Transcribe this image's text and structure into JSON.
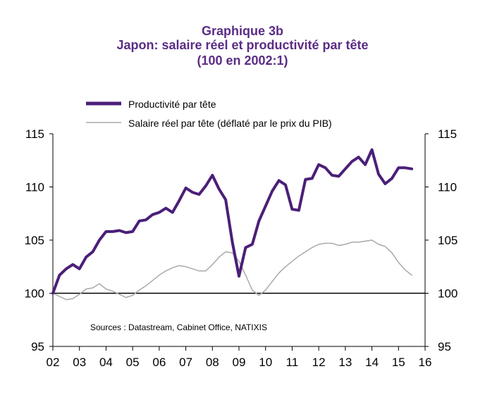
{
  "chart_data": {
    "type": "line",
    "title": "Graphique 3b",
    "subtitle": "Japon: salaire réel  et  productivité par tête",
    "subtitle2": "(100 en 2002:1)",
    "note": "Sources : Datastream, Cabinet Office, NATIXIS",
    "ylim": [
      95,
      115
    ],
    "yticks": [
      95,
      100,
      105,
      110,
      115
    ],
    "xlim": [
      2002,
      2016
    ],
    "xticks": [
      "02",
      "03",
      "04",
      "05",
      "06",
      "07",
      "08",
      "09",
      "10",
      "11",
      "12",
      "13",
      "14",
      "15",
      "16"
    ],
    "reference_line": 100,
    "legend_position": "top-left",
    "grid": false,
    "series": [
      {
        "name": "Productivité par tête",
        "color": "#4b1f78",
        "points": [
          [
            2002.0,
            100.0
          ],
          [
            2002.25,
            101.7
          ],
          [
            2002.5,
            102.3
          ],
          [
            2002.75,
            102.7
          ],
          [
            2003.0,
            102.3
          ],
          [
            2003.25,
            103.4
          ],
          [
            2003.5,
            103.9
          ],
          [
            2003.75,
            105.0
          ],
          [
            2004.0,
            105.8
          ],
          [
            2004.25,
            105.8
          ],
          [
            2004.5,
            105.9
          ],
          [
            2004.75,
            105.7
          ],
          [
            2005.0,
            105.8
          ],
          [
            2005.25,
            106.8
          ],
          [
            2005.5,
            106.9
          ],
          [
            2005.75,
            107.4
          ],
          [
            2006.0,
            107.6
          ],
          [
            2006.25,
            108.0
          ],
          [
            2006.5,
            107.6
          ],
          [
            2006.75,
            108.7
          ],
          [
            2007.0,
            109.9
          ],
          [
            2007.25,
            109.5
          ],
          [
            2007.5,
            109.3
          ],
          [
            2007.75,
            110.1
          ],
          [
            2008.0,
            111.1
          ],
          [
            2008.25,
            109.8
          ],
          [
            2008.5,
            108.8
          ],
          [
            2008.75,
            104.8
          ],
          [
            2009.0,
            101.6
          ],
          [
            2009.25,
            104.3
          ],
          [
            2009.5,
            104.6
          ],
          [
            2009.75,
            106.8
          ],
          [
            2010.0,
            108.2
          ],
          [
            2010.25,
            109.6
          ],
          [
            2010.5,
            110.6
          ],
          [
            2010.75,
            110.2
          ],
          [
            2011.0,
            107.9
          ],
          [
            2011.25,
            107.8
          ],
          [
            2011.5,
            110.7
          ],
          [
            2011.75,
            110.8
          ],
          [
            2012.0,
            112.1
          ],
          [
            2012.25,
            111.8
          ],
          [
            2012.5,
            111.1
          ],
          [
            2012.75,
            111.0
          ],
          [
            2013.0,
            111.7
          ],
          [
            2013.25,
            112.4
          ],
          [
            2013.5,
            112.8
          ],
          [
            2013.75,
            112.1
          ],
          [
            2014.0,
            113.5
          ],
          [
            2014.25,
            111.2
          ],
          [
            2014.5,
            110.3
          ],
          [
            2014.75,
            110.8
          ],
          [
            2015.0,
            111.8
          ],
          [
            2015.25,
            111.8
          ],
          [
            2015.5,
            111.7
          ]
        ]
      },
      {
        "name": "Salaire réel par tête (déflaté par le prix du PIB)",
        "color": "#a9a9a9",
        "points": [
          [
            2002.0,
            100.0
          ],
          [
            2002.25,
            99.7
          ],
          [
            2002.5,
            99.4
          ],
          [
            2002.75,
            99.5
          ],
          [
            2003.0,
            99.9
          ],
          [
            2003.25,
            100.4
          ],
          [
            2003.5,
            100.5
          ],
          [
            2003.75,
            100.9
          ],
          [
            2004.0,
            100.4
          ],
          [
            2004.25,
            100.2
          ],
          [
            2004.5,
            99.9
          ],
          [
            2004.75,
            99.6
          ],
          [
            2005.0,
            99.8
          ],
          [
            2005.25,
            100.3
          ],
          [
            2005.5,
            100.7
          ],
          [
            2005.75,
            101.2
          ],
          [
            2006.0,
            101.7
          ],
          [
            2006.25,
            102.1
          ],
          [
            2006.5,
            102.4
          ],
          [
            2006.75,
            102.6
          ],
          [
            2007.0,
            102.5
          ],
          [
            2007.25,
            102.3
          ],
          [
            2007.5,
            102.1
          ],
          [
            2007.75,
            102.1
          ],
          [
            2008.0,
            102.7
          ],
          [
            2008.25,
            103.4
          ],
          [
            2008.5,
            103.9
          ],
          [
            2008.75,
            103.8
          ],
          [
            2009.0,
            103.0
          ],
          [
            2009.25,
            101.7
          ],
          [
            2009.5,
            100.3
          ],
          [
            2009.75,
            99.8
          ],
          [
            2010.0,
            100.3
          ],
          [
            2010.25,
            101.1
          ],
          [
            2010.5,
            101.9
          ],
          [
            2010.75,
            102.5
          ],
          [
            2011.0,
            103.0
          ],
          [
            2011.25,
            103.5
          ],
          [
            2011.5,
            103.9
          ],
          [
            2011.75,
            104.3
          ],
          [
            2012.0,
            104.6
          ],
          [
            2012.25,
            104.7
          ],
          [
            2012.5,
            104.7
          ],
          [
            2012.75,
            104.5
          ],
          [
            2013.0,
            104.6
          ],
          [
            2013.25,
            104.8
          ],
          [
            2013.5,
            104.8
          ],
          [
            2013.75,
            104.9
          ],
          [
            2014.0,
            105.0
          ],
          [
            2014.25,
            104.6
          ],
          [
            2014.5,
            104.4
          ],
          [
            2014.75,
            103.8
          ],
          [
            2015.0,
            102.9
          ],
          [
            2015.25,
            102.2
          ],
          [
            2015.5,
            101.7
          ]
        ]
      }
    ]
  }
}
